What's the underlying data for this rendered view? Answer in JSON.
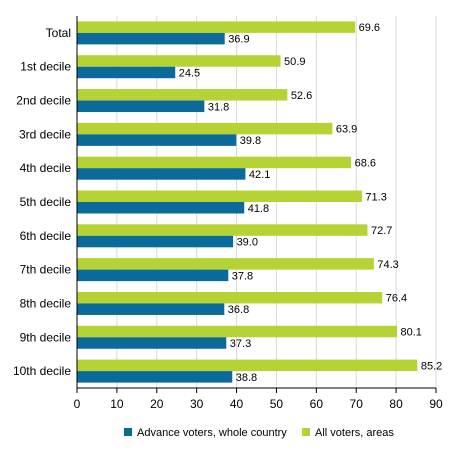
{
  "chart_data": {
    "type": "bar",
    "orientation": "horizontal",
    "categories": [
      "Total",
      "1st decile",
      "2nd decile",
      "3rd decile",
      "4th decile",
      "5th decile",
      "6th decile",
      "7th decile",
      "8th decile",
      "9th decile",
      "10th decile"
    ],
    "series": [
      {
        "name": "All voters, areas",
        "color": "#b5d334",
        "values": [
          69.6,
          50.9,
          52.6,
          63.9,
          68.6,
          71.3,
          72.7,
          74.3,
          76.4,
          80.1,
          85.2
        ]
      },
      {
        "name": "Advance voters, whole country",
        "color": "#0a6a9a",
        "values": [
          36.9,
          24.5,
          31.8,
          39.8,
          42.1,
          41.8,
          39.0,
          37.8,
          36.8,
          37.3,
          38.8
        ]
      }
    ],
    "value_labels": {
      "All voters, areas": [
        "69.6",
        "50.9",
        "52.6",
        "63.9",
        "68.6",
        "71.3",
        "72.7",
        "74.3",
        "76.4",
        "80.1",
        "85.2"
      ],
      "Advance voters, whole country": [
        "36.9",
        "24.5",
        "31.8",
        "39.8",
        "42.1",
        "41.8",
        "39.0",
        "37.8",
        "36.8",
        "37.3",
        "38.8"
      ]
    },
    "xlim": [
      0,
      90
    ],
    "xticks": [
      "0",
      "10",
      "20",
      "30",
      "40",
      "50",
      "60",
      "70",
      "80",
      "90"
    ],
    "grid": "vertical",
    "legend": {
      "position": "bottom",
      "items": [
        {
          "label": "Advance voters, whole country",
          "color": "#0a6a9a"
        },
        {
          "label": "All voters, areas",
          "color": "#b5d334"
        }
      ]
    },
    "title": "",
    "xlabel": "",
    "ylabel": ""
  }
}
